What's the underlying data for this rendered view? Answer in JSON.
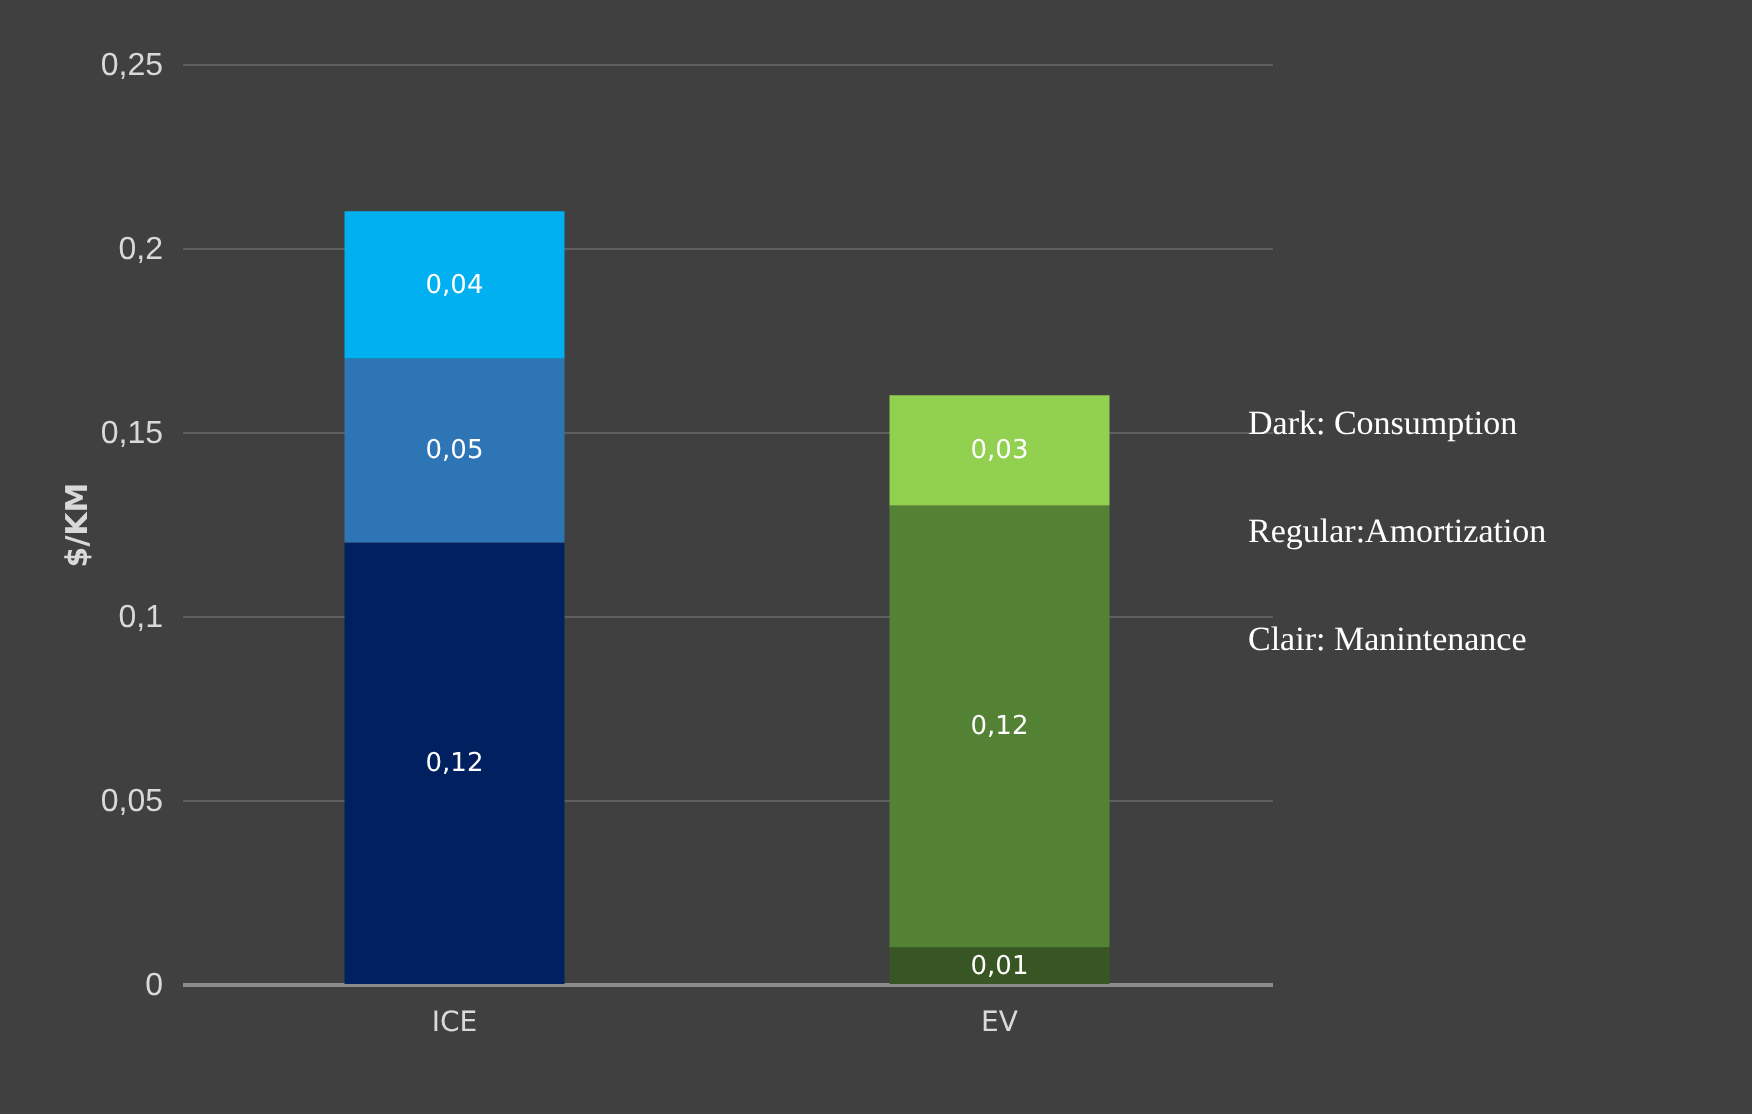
{
  "chart_data": {
    "type": "bar",
    "stacked": true,
    "ylabel": "$/KM",
    "categories": [
      "ICE",
      "EV"
    ],
    "series": [
      {
        "colors": [
          "#002060",
          "#375623"
        ],
        "values": [
          0.12,
          0.01
        ],
        "value_labels": [
          "0,12",
          "0,01"
        ]
      },
      {
        "colors": [
          "#2e75b6",
          "#548235"
        ],
        "values": [
          0.05,
          0.12
        ],
        "value_labels": [
          "0,05",
          "0,12"
        ]
      },
      {
        "colors": [
          "#00b0f0",
          "#92d050"
        ],
        "values": [
          0.04,
          0.03
        ],
        "value_labels": [
          "0,04",
          "0,03"
        ]
      }
    ],
    "ylim": [
      0,
      0.25
    ],
    "yticks": [
      0,
      {
        "value": 0.05,
        "label": "0,05"
      },
      {
        "value": 0.1,
        "label": "0,1"
      },
      {
        "value": 0.15,
        "label": "0,15"
      },
      {
        "value": 0.2,
        "label": "0,2"
      },
      {
        "value": 0.25,
        "label": "0,25"
      }
    ],
    "grid": "y",
    "annotations": [
      "Dark: Consumption",
      "Regular:Amortization",
      "Clair: Manintenance"
    ]
  }
}
